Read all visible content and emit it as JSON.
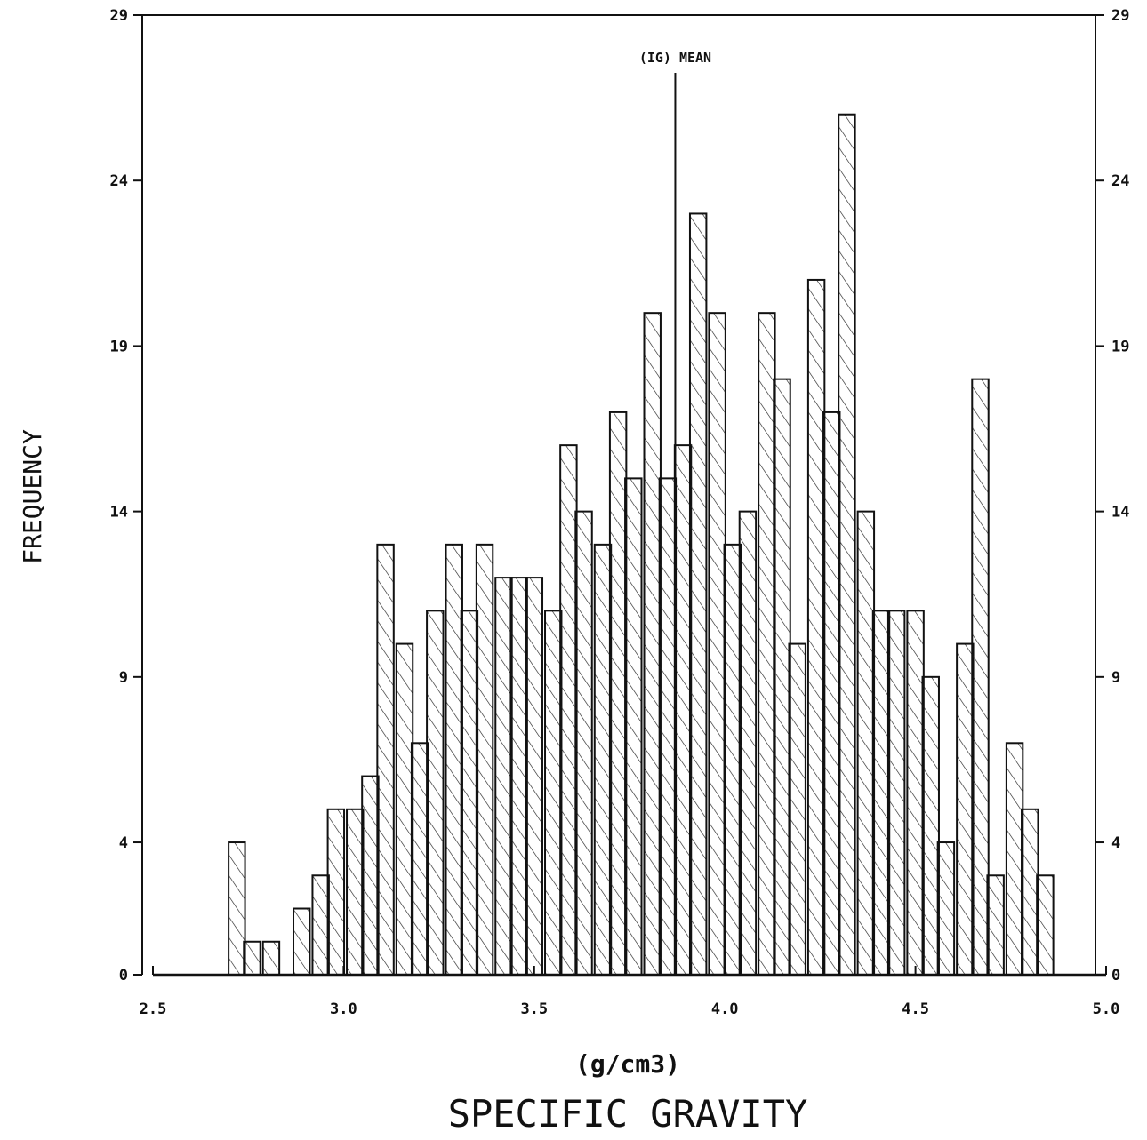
{
  "chart_data": {
    "type": "bar",
    "title": "",
    "xlabel": "SPECIFIC GRAVITY",
    "xunits": "(g/cm3)",
    "ylabel": "FREQUENCY",
    "xlim": [
      2.5,
      5.0
    ],
    "ylim": [
      0,
      29
    ],
    "x_ticks": [
      "2.5",
      "3.0",
      "3.5",
      "4.0",
      "4.5",
      "5.0"
    ],
    "x_tick_values": [
      2.5,
      3.0,
      3.5,
      4.0,
      4.5,
      5.0
    ],
    "y_ticks": [
      "0",
      "4",
      "9",
      "14",
      "19",
      "24",
      "29"
    ],
    "y_tick_values": [
      0,
      4,
      9,
      14,
      19,
      24,
      29
    ],
    "bin_width": 0.043,
    "x": [
      2.72,
      2.76,
      2.81,
      2.89,
      2.94,
      2.98,
      3.03,
      3.07,
      3.11,
      3.16,
      3.2,
      3.24,
      3.29,
      3.33,
      3.37,
      3.42,
      3.46,
      3.5,
      3.55,
      3.59,
      3.63,
      3.68,
      3.72,
      3.76,
      3.81,
      3.85,
      3.89,
      3.93,
      3.98,
      4.02,
      4.06,
      4.11,
      4.15,
      4.19,
      4.24,
      4.28,
      4.32,
      4.37,
      4.41,
      4.45,
      4.5,
      4.54,
      4.58,
      4.63,
      4.67,
      4.71,
      4.76,
      4.8,
      4.84
    ],
    "values": [
      4,
      1,
      1,
      2,
      3,
      5,
      5,
      6,
      13,
      10,
      7,
      11,
      13,
      11,
      13,
      12,
      12,
      12,
      11,
      16,
      14,
      13,
      17,
      15,
      20,
      15,
      16,
      23,
      20,
      13,
      14,
      20,
      18,
      10,
      21,
      17,
      26,
      14,
      11,
      11,
      11,
      9,
      4,
      10,
      18,
      3,
      7,
      5,
      3
    ],
    "mean": 3.87,
    "mean_label": "(IG) MEAN",
    "grid": false,
    "legend": "none"
  }
}
